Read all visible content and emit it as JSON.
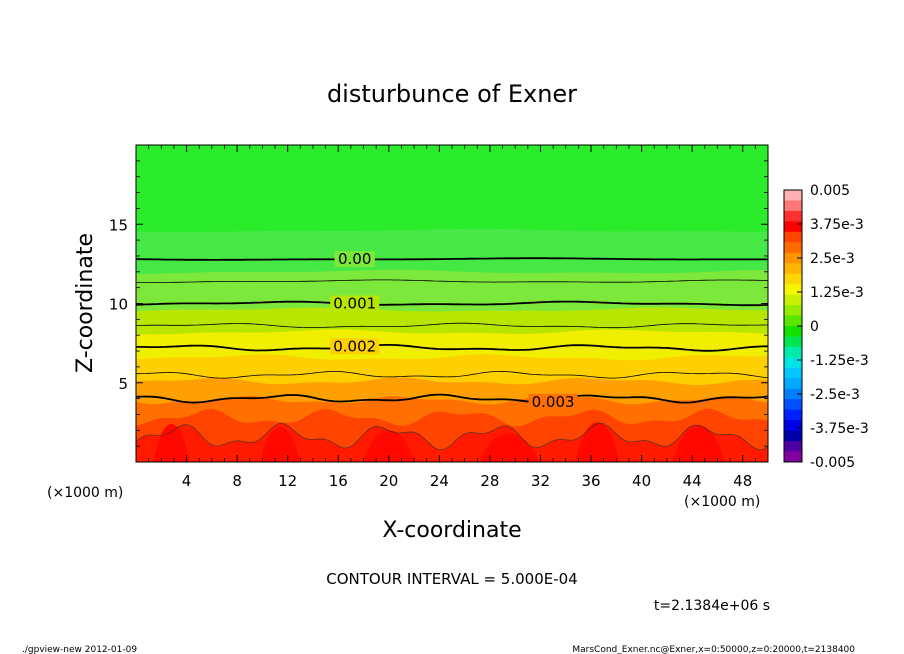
{
  "chart_data": {
    "type": "heatmap",
    "title": "disturbunce of Exner",
    "xlabel": "X-coordinate",
    "ylabel": "Z-coordinate",
    "x_unit": "(×1000 m)",
    "y_unit": "(×1000 m)",
    "xlim": [
      0,
      50
    ],
    "ylim": [
      0,
      20
    ],
    "x_ticks": [
      "4",
      "8",
      "12",
      "16",
      "20",
      "24",
      "28",
      "32",
      "36",
      "40",
      "44",
      "48"
    ],
    "y_ticks": [
      "5",
      "10",
      "15"
    ],
    "contour_interval_text": "CONTOUR INTERVAL = 5.000E-04",
    "time_text": "t=2.1384e+06 s",
    "contour_labels": [
      {
        "text": "0.00",
        "x": 17.3,
        "z": 12.8
      },
      {
        "text": "0.001",
        "x": 17.3,
        "z": 10.0
      },
      {
        "text": "0.002",
        "x": 17.3,
        "z": 7.3
      },
      {
        "text": "0.003",
        "x": 33.0,
        "z": 3.8
      }
    ],
    "contour_levels": [
      {
        "value": 0.0,
        "z": 12.8,
        "bold": true
      },
      {
        "value": 0.0005,
        "z": 11.4,
        "bold": false
      },
      {
        "value": 0.001,
        "z": 10.0,
        "bold": true
      },
      {
        "value": 0.0015,
        "z": 8.6,
        "bold": false
      },
      {
        "value": 0.002,
        "z": 7.2,
        "bold": true
      },
      {
        "value": 0.0025,
        "z": 5.5,
        "bold": false
      },
      {
        "value": 0.003,
        "z": 4.0,
        "bold": true
      }
    ],
    "colorbar": {
      "labels": [
        "0.005",
        "3.75e-3",
        "2.5e-3",
        "1.25e-3",
        "0",
        "-1.25e-3",
        "-2.5e-3",
        "-3.75e-3",
        "-0.005"
      ],
      "colors": [
        "#ffb0b0",
        "#ff7878",
        "#ff3030",
        "#ff0000",
        "#ff4500",
        "#ff6a00",
        "#ff9400",
        "#ffb400",
        "#ffd700",
        "#f5f500",
        "#c8f000",
        "#96eb00",
        "#5ae600",
        "#14e100",
        "#00e650",
        "#00ebaa",
        "#00e6e6",
        "#00c8ff",
        "#00aaff",
        "#0080ff",
        "#0050ff",
        "#0020ff",
        "#0000e6",
        "#0000aa",
        "#5000a0",
        "#8000a0"
      ],
      "vmin": -0.005,
      "vmax": 0.005
    }
  },
  "footer": {
    "left": "./gpview-new   2012-01-09",
    "right": "MarsCond_Exner.nc@Exner,x=0:50000,z=0:20000,t=2138400"
  },
  "colors": {
    "background": "#ffffff",
    "axes": "#000000",
    "top_green": "#2aec2a",
    "band_green_1": "#45e845",
    "band_green_2": "#7de83c",
    "band_yellowgreen": "#b8e600",
    "band_yellow": "#f0ef00",
    "band_gold": "#ffd000",
    "band_orange": "#ffa000",
    "band_darkorange": "#ff7000",
    "band_redorange": "#ff4400",
    "band_red": "#ff1a00"
  }
}
